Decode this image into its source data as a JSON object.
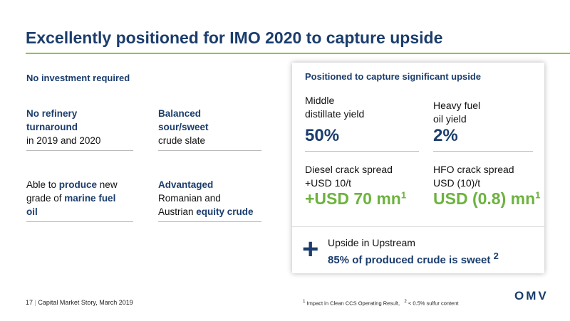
{
  "title": "Excellently positioned for IMO 2020 to capture upside",
  "left": {
    "heading": "No investment required",
    "items": [
      {
        "lines": [
          [
            {
              "t": "No refinery",
              "b": true
            }
          ],
          [
            {
              "t": "turnaround",
              "b": true
            }
          ],
          [
            {
              "t": "in 2019 and 2020",
              "b": false
            }
          ]
        ]
      },
      {
        "lines": [
          [
            {
              "t": "Balanced",
              "b": true
            }
          ],
          [
            {
              "t": "sour/sweet",
              "b": true
            }
          ],
          [
            {
              "t": "crude slate",
              "b": false
            }
          ]
        ]
      },
      {
        "lines": [
          [
            {
              "t": "Able to ",
              "b": false
            },
            {
              "t": "produce",
              "b": true
            },
            {
              "t": " new",
              "b": false
            }
          ],
          [
            {
              "t": "grade of ",
              "b": false
            },
            {
              "t": "marine fuel",
              "b": true
            }
          ],
          [
            {
              "t": "oil",
              "b": true
            }
          ]
        ]
      },
      {
        "lines": [
          [
            {
              "t": "Advantaged",
              "b": true
            }
          ],
          [
            {
              "t": "Romanian and",
              "b": false
            }
          ],
          [
            {
              "t": "Austrian ",
              "b": false
            },
            {
              "t": "equity crude",
              "b": true
            }
          ]
        ]
      }
    ]
  },
  "right": {
    "heading": "Positioned to capture significant upside",
    "metrics": [
      {
        "label": [
          "Middle",
          "distillate yield"
        ],
        "value": "50%"
      },
      {
        "label": [
          "Heavy fuel",
          "oil yield"
        ],
        "value": "2%"
      }
    ],
    "spreads": [
      {
        "label": [
          "Diesel crack spread",
          "+USD 10/t"
        ],
        "value": "+USD 70 mn",
        "note": "1"
      },
      {
        "label": [
          "HFO crack spread",
          "USD (10)/t"
        ],
        "value": "USD (0.8) mn",
        "note": "1"
      }
    ],
    "upstream": {
      "icon": "+",
      "line1": "Upside in Upstream",
      "line2": "85% of produced crude is sweet",
      "note": "2"
    }
  },
  "footer": {
    "page": "17",
    "source": "Capital Market Story, March 2019",
    "footnotes": [
      {
        "mark": "1",
        "text": "Impact in Clean CCS Operating Result,"
      },
      {
        "mark": "2",
        "text": "< 0.5% sulfur content"
      }
    ],
    "logo": "OMV"
  }
}
